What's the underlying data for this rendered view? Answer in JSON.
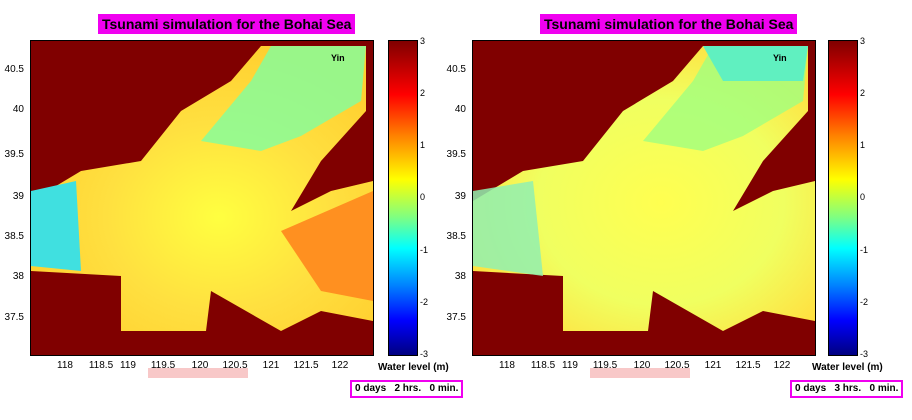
{
  "chart_data": [
    {
      "type": "heatmap",
      "title": "Tsunami simulation for the Bohai Sea",
      "xlabel": "",
      "ylabel": "",
      "x_ticks": [
        "118",
        "118.5",
        "119",
        "119.5",
        "120",
        "120.5",
        "121",
        "121.5",
        "122"
      ],
      "y_ticks": [
        "40.5",
        "40",
        "39.5",
        "39",
        "38.5",
        "38",
        "37.5"
      ],
      "xlim": [
        117.6,
        122.4
      ],
      "ylim": [
        37.1,
        40.8
      ],
      "colorbar": {
        "label": "Water level (m)",
        "ticks": [
          "3",
          "2",
          "1",
          "0",
          "-1",
          "-2",
          "-3"
        ],
        "range": [
          -3,
          3
        ]
      },
      "annotation": "Yin",
      "time_label": "0 days   2 hrs.   0 min."
    },
    {
      "type": "heatmap",
      "title": "Tsunami simulation for the Bohai Sea",
      "xlabel": "",
      "ylabel": "",
      "x_ticks": [
        "118",
        "118.5",
        "119",
        "119.5",
        "120",
        "120.5",
        "121",
        "121.5",
        "122"
      ],
      "y_ticks": [
        "40.5",
        "40",
        "39.5",
        "39",
        "38.5",
        "38",
        "37.5"
      ],
      "xlim": [
        117.6,
        122.4
      ],
      "ylim": [
        37.1,
        40.8
      ],
      "colorbar": {
        "label": "Water level (m)",
        "ticks": [
          "3",
          "2",
          "1",
          "0",
          "-1",
          "-2",
          "-3"
        ],
        "range": [
          -3,
          3
        ]
      },
      "annotation": "Yin",
      "time_label": "0 days   3 hrs.   0 min."
    }
  ],
  "colors": {
    "land": "#800000",
    "title_bg": "#f000f0",
    "box_border": "#f000f0",
    "highlight_bar": "#f8c8c8"
  }
}
